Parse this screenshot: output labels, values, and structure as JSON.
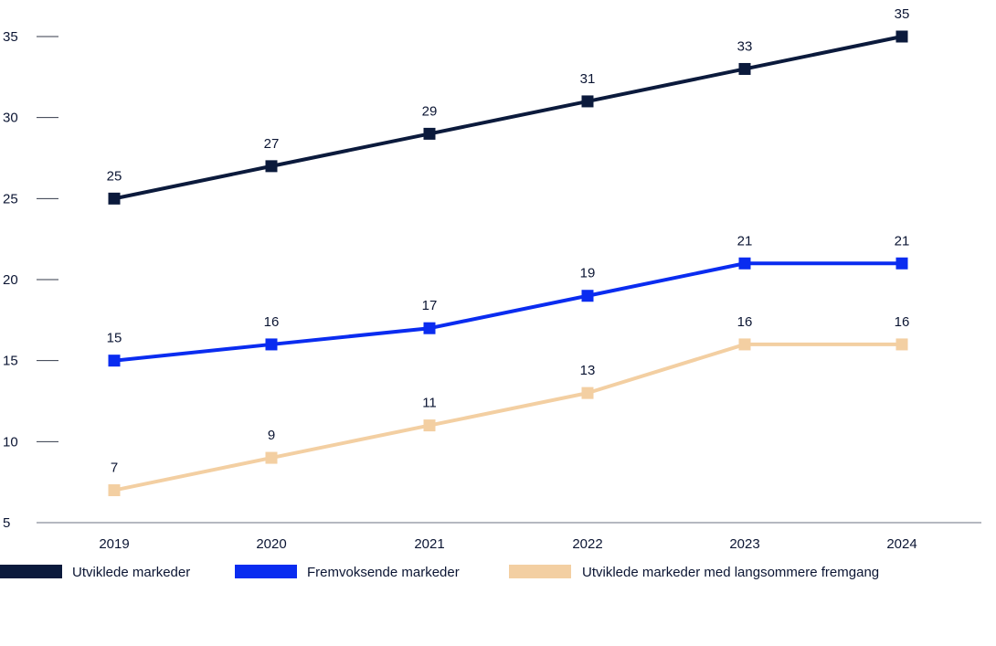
{
  "chart_data": {
    "type": "line",
    "title": "",
    "xlabel": "",
    "ylabel": "",
    "categories": [
      "2019",
      "2020",
      "2021",
      "2022",
      "2023",
      "2024"
    ],
    "ylim": [
      5,
      35
    ],
    "yticks": [
      5,
      10,
      15,
      20,
      25,
      30,
      35
    ],
    "grid": false,
    "legend_position": "bottom",
    "series": [
      {
        "name": "Utviklede markeder",
        "color": "#0b1a3c",
        "values": [
          25,
          27,
          29,
          31,
          33,
          35
        ]
      },
      {
        "name": "Fremvoksende markeder",
        "color": "#0a2cf0",
        "values": [
          15,
          16,
          17,
          19,
          21,
          21
        ]
      },
      {
        "name": "Utviklede markeder med langsommere fremgang",
        "color": "#f3cfa2",
        "values": [
          7,
          9,
          11,
          13,
          16,
          16
        ]
      }
    ]
  }
}
